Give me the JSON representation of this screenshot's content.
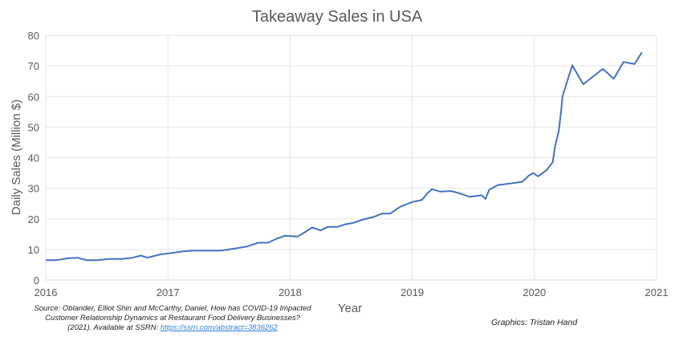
{
  "chart_data": {
    "type": "line",
    "title": "Takeaway Sales in USA",
    "xlabel": "Year",
    "ylabel": "Daily Sales (Million $)",
    "xlim": [
      2016,
      2021
    ],
    "ylim": [
      0,
      80
    ],
    "xticks": [
      "2016",
      "2017",
      "2018",
      "2019",
      "2020",
      "2021"
    ],
    "yticks": [
      "0",
      "10",
      "20",
      "30",
      "40",
      "50",
      "60",
      "70",
      "80"
    ],
    "grid": true,
    "line_color": "#4472c4",
    "series": [
      {
        "x": [
          2016.0,
          2016.09,
          2016.18,
          2016.26,
          2016.33,
          2016.42,
          2016.52,
          2016.62,
          2016.71,
          2016.78,
          2016.83,
          2016.94,
          2017.03,
          2017.11,
          2017.2,
          2017.43,
          2017.55,
          2017.65,
          2017.74,
          2017.82,
          2017.89,
          2017.96,
          2018.06,
          2018.12,
          2018.18,
          2018.25,
          2018.31,
          2018.39,
          2018.45,
          2018.52,
          2018.6,
          2018.69,
          2018.75,
          2018.82,
          2018.88,
          2018.91,
          2019.0,
          2019.08,
          2019.12,
          2019.16,
          2019.23,
          2019.32,
          2019.39,
          2019.47,
          2019.57,
          2019.6,
          2019.63,
          2019.7,
          2019.9,
          2019.95,
          2019.99,
          2020.03,
          2020.1,
          2020.15,
          2020.17,
          2020.2,
          2020.22,
          2020.23,
          2020.31,
          2020.4,
          2020.56,
          2020.65,
          2020.73,
          2020.82,
          2020.88
        ],
        "y": [
          6.5,
          6.5,
          7.1,
          7.3,
          6.5,
          6.5,
          6.9,
          6.9,
          7.3,
          8.0,
          7.3,
          8.4,
          8.8,
          9.3,
          9.6,
          9.6,
          10.3,
          11.0,
          12.2,
          12.2,
          13.5,
          14.5,
          14.2,
          15.6,
          17.2,
          16.2,
          17.4,
          17.4,
          18.2,
          18.7,
          19.8,
          20.7,
          21.7,
          21.7,
          23.4,
          24.1,
          25.5,
          26.2,
          28.2,
          29.7,
          28.9,
          29.1,
          28.3,
          27.2,
          27.7,
          26.5,
          29.5,
          31.0,
          32.1,
          34.0,
          35.0,
          33.9,
          35.9,
          38.5,
          43.9,
          48.7,
          55.7,
          60.1,
          70.2,
          64.0,
          69.0,
          65.8,
          71.3,
          70.6,
          74.4
        ]
      }
    ]
  },
  "source": {
    "text": "Source: Oblander, Elliot Shin and McCarthy, Daniel, How has COVID-19 Impacted Customer Relationship Dynamics at Restaurant Food Delivery Businesses? (2021). Available at SSRN: ",
    "link": "https://ssrn.com/abstract=3836262"
  },
  "credit": "Graphics: Tristan Hand"
}
